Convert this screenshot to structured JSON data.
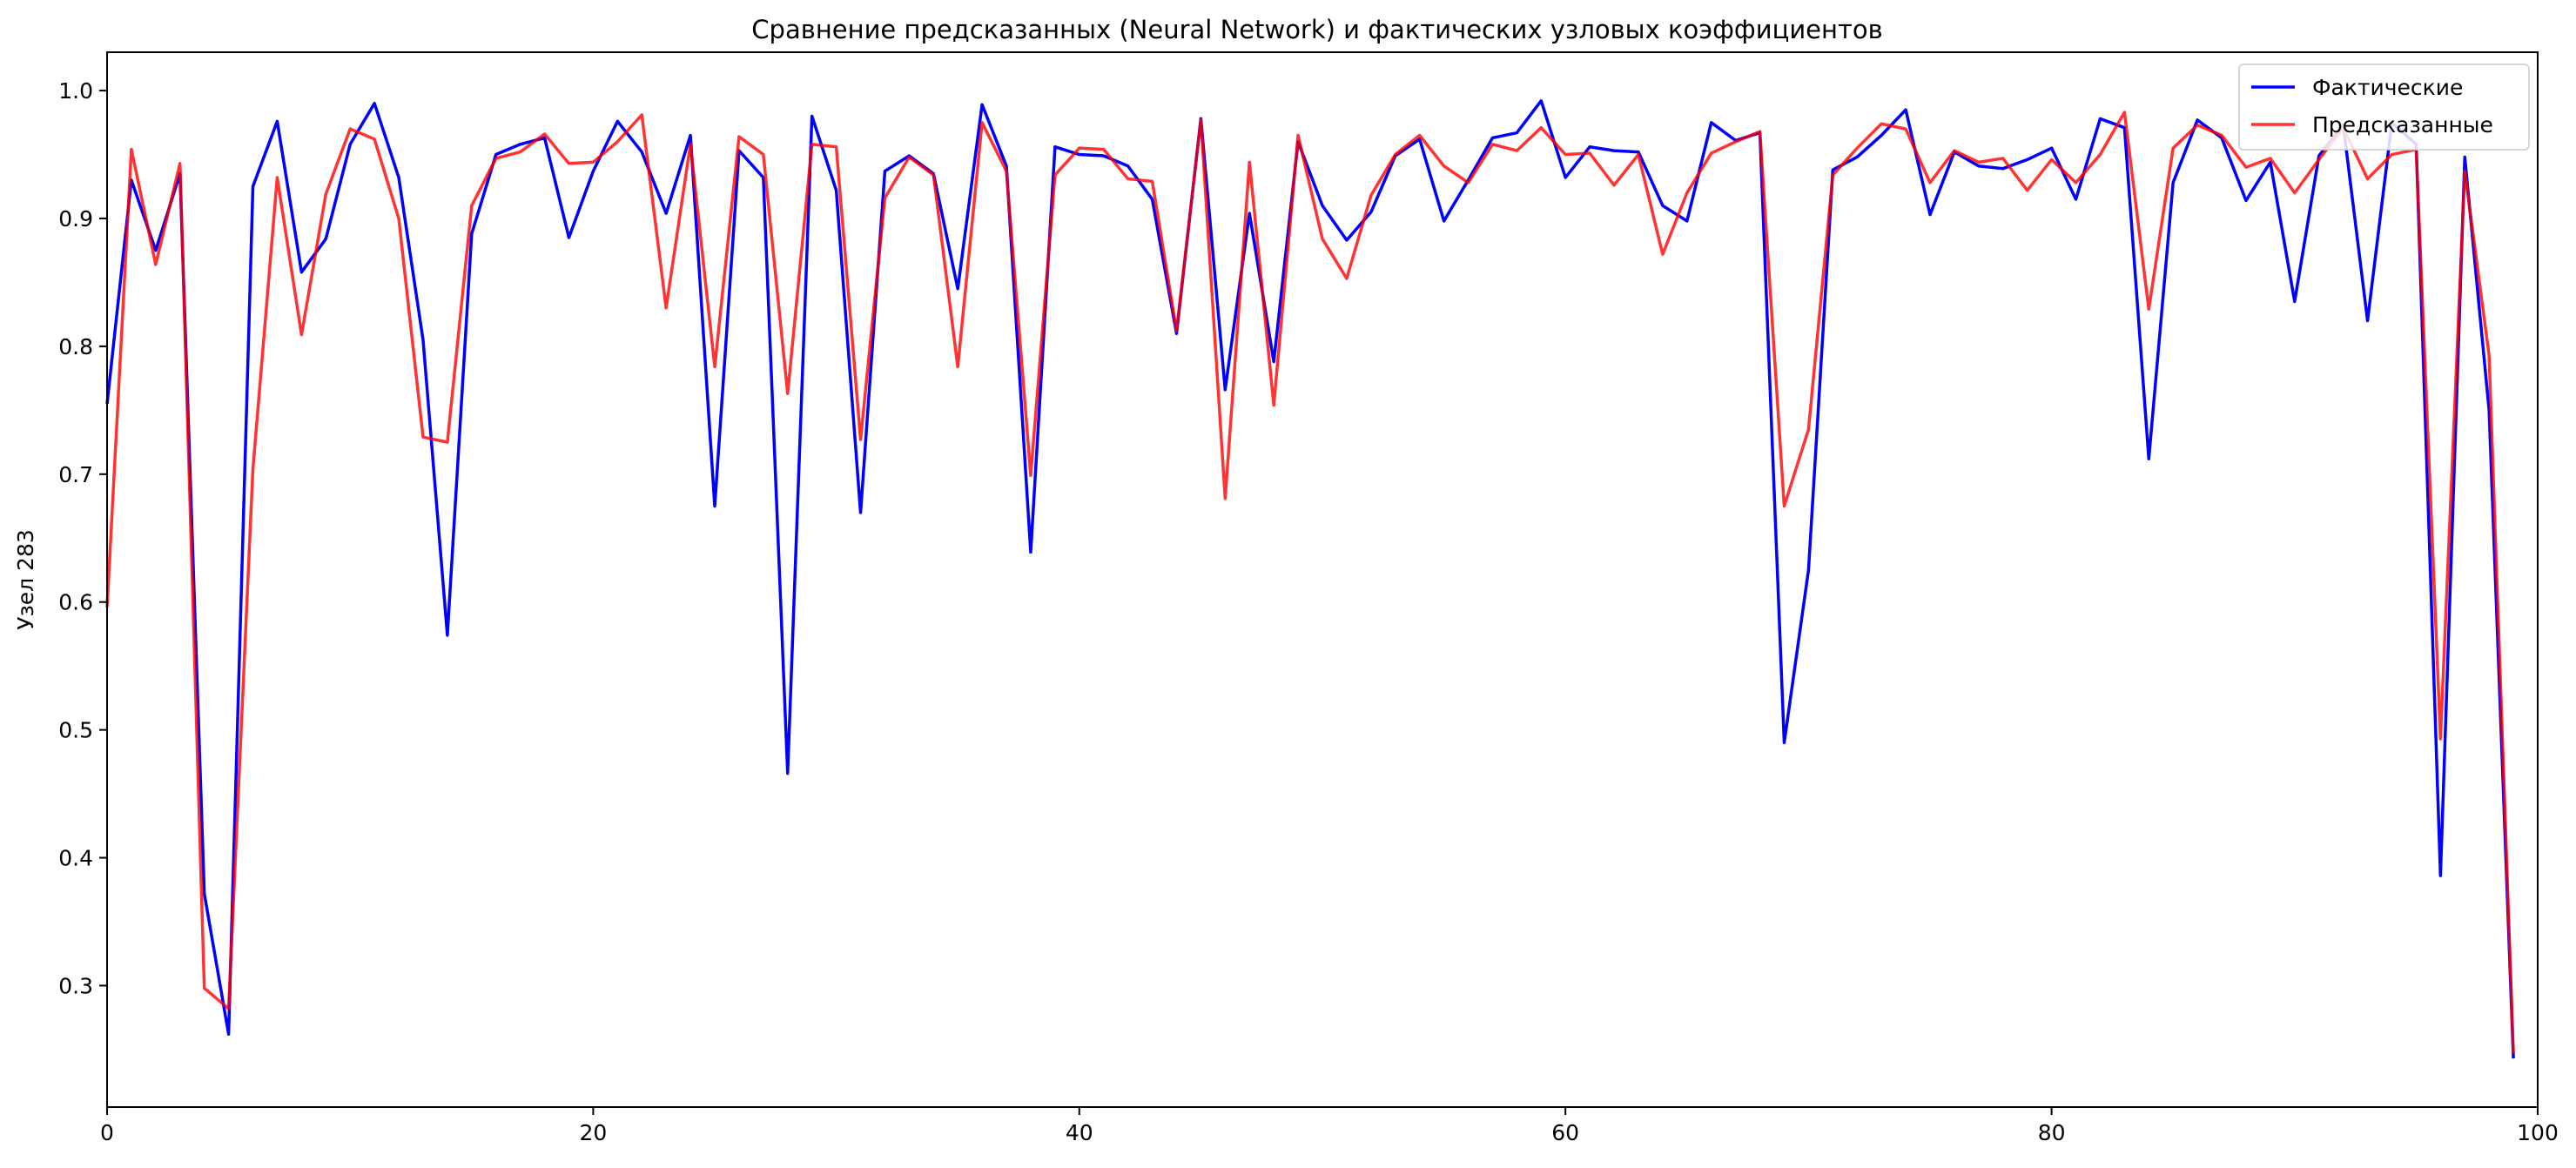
{
  "chart_data": {
    "type": "line",
    "title": "Сравнение предсказанных (Neural Network) и фактических узловых коэффициентов",
    "xlabel": "",
    "ylabel": "Узел 283",
    "xlim": [
      0,
      100
    ],
    "ylim": [
      0.205,
      1.03
    ],
    "xticks": [
      0,
      20,
      40,
      60,
      80,
      100
    ],
    "yticks": [
      0.3,
      0.4,
      0.5,
      0.6,
      0.7,
      0.8,
      0.9,
      1.0
    ],
    "ytick_labels": [
      "0.3",
      "0.4",
      "0.5",
      "0.6",
      "0.7",
      "0.8",
      "0.9",
      "1.0"
    ],
    "grid": false,
    "legend_position": "top-right",
    "series": [
      {
        "name": "Фактические",
        "color": "#0000ff",
        "values": [
          0.755,
          0.93,
          0.875,
          0.935,
          0.372,
          0.262,
          0.925,
          0.976,
          0.858,
          0.884,
          0.958,
          0.99,
          0.932,
          0.805,
          0.574,
          0.888,
          0.95,
          0.958,
          0.963,
          0.885,
          0.937,
          0.976,
          0.952,
          0.904,
          0.965,
          0.675,
          0.953,
          0.932,
          0.466,
          0.98,
          0.922,
          0.67,
          0.937,
          0.949,
          0.935,
          0.845,
          0.989,
          0.941,
          0.639,
          0.956,
          0.95,
          0.949,
          0.941,
          0.915,
          0.81,
          0.978,
          0.766,
          0.904,
          0.788,
          0.96,
          0.91,
          0.883,
          0.905,
          0.949,
          0.962,
          0.898,
          0.93,
          0.963,
          0.967,
          0.992,
          0.932,
          0.956,
          0.953,
          0.952,
          0.91,
          0.898,
          0.975,
          0.961,
          0.967,
          0.49,
          0.625,
          0.938,
          0.948,
          0.965,
          0.985,
          0.903,
          0.952,
          0.941,
          0.939,
          0.946,
          0.955,
          0.915,
          0.978,
          0.971,
          0.712,
          0.928,
          0.977,
          0.963,
          0.914,
          0.944,
          0.835,
          0.949,
          0.973,
          0.82,
          0.975,
          0.958,
          0.386,
          0.948,
          0.75,
          0.243
        ]
      },
      {
        "name": "Предсказанные",
        "color": "#ff0000",
        "values": [
          0.596,
          0.954,
          0.864,
          0.943,
          0.298,
          0.282,
          0.704,
          0.932,
          0.809,
          0.919,
          0.97,
          0.962,
          0.9,
          0.729,
          0.725,
          0.91,
          0.947,
          0.952,
          0.966,
          0.943,
          0.944,
          0.96,
          0.981,
          0.83,
          0.958,
          0.784,
          0.964,
          0.95,
          0.763,
          0.958,
          0.956,
          0.727,
          0.916,
          0.948,
          0.934,
          0.784,
          0.975,
          0.937,
          0.699,
          0.934,
          0.955,
          0.954,
          0.931,
          0.929,
          0.812,
          0.977,
          0.681,
          0.944,
          0.754,
          0.965,
          0.884,
          0.853,
          0.918,
          0.95,
          0.965,
          0.941,
          0.928,
          0.958,
          0.953,
          0.971,
          0.95,
          0.951,
          0.926,
          0.95,
          0.872,
          0.92,
          0.951,
          0.96,
          0.968,
          0.675,
          0.735,
          0.934,
          0.955,
          0.974,
          0.97,
          0.928,
          0.953,
          0.944,
          0.947,
          0.922,
          0.946,
          0.928,
          0.95,
          0.983,
          0.829,
          0.955,
          0.973,
          0.965,
          0.94,
          0.947,
          0.92,
          0.946,
          0.971,
          0.931,
          0.95,
          0.954,
          0.493,
          0.937,
          0.793,
          0.247
        ]
      }
    ]
  }
}
